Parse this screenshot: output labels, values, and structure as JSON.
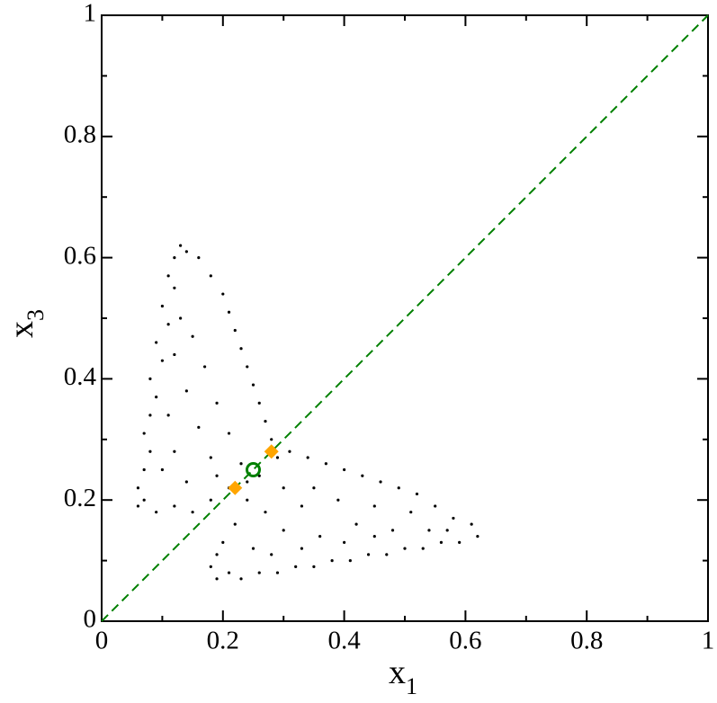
{
  "chart_data": {
    "type": "scatter",
    "xlabel": "x",
    "xlabel_sub": "1",
    "ylabel": "x",
    "ylabel_sub": "3",
    "xlim": [
      0,
      1
    ],
    "ylim": [
      0,
      1
    ],
    "xticks": [
      0,
      0.2,
      0.4,
      0.6,
      0.8,
      1
    ],
    "yticks": [
      0,
      0.2,
      0.4,
      0.6,
      0.8,
      1
    ],
    "xminor": [
      0.1,
      0.3,
      0.5,
      0.7,
      0.9
    ],
    "yminor": [
      0.1,
      0.3,
      0.5,
      0.7,
      0.9
    ],
    "grid": false,
    "reference_line": {
      "x": [
        0,
        1
      ],
      "y": [
        0,
        1
      ],
      "color": "#008000",
      "dashed": true
    },
    "series": [
      {
        "color": "#000000",
        "marker": "dot",
        "x": [
          0.13,
          0.12,
          0.14,
          0.11,
          0.12,
          0.1,
          0.11,
          0.09,
          0.1,
          0.08,
          0.09,
          0.08,
          0.07,
          0.08,
          0.07,
          0.06,
          0.07,
          0.06,
          0.09,
          0.12,
          0.15,
          0.18,
          0.21,
          0.16,
          0.18,
          0.2,
          0.21,
          0.22,
          0.23,
          0.24,
          0.25,
          0.26,
          0.27,
          0.28,
          0.13,
          0.15,
          0.12,
          0.17,
          0.14,
          0.19,
          0.11,
          0.16,
          0.21,
          0.12,
          0.18,
          0.23,
          0.1,
          0.14,
          0.19,
          0.24,
          0.18,
          0.19,
          0.21,
          0.23,
          0.26,
          0.29,
          0.32,
          0.35,
          0.38,
          0.41,
          0.44,
          0.47,
          0.5,
          0.53,
          0.56,
          0.59,
          0.62,
          0.61,
          0.58,
          0.55,
          0.52,
          0.49,
          0.46,
          0.43,
          0.4,
          0.37,
          0.34,
          0.31,
          0.29,
          0.26,
          0.24,
          0.22,
          0.2,
          0.19,
          0.27,
          0.3,
          0.33,
          0.36,
          0.39,
          0.42,
          0.45,
          0.48,
          0.51,
          0.54,
          0.57,
          0.25,
          0.3,
          0.35,
          0.4,
          0.28,
          0.33,
          0.45
        ],
        "values": [
          0.62,
          0.6,
          0.61,
          0.57,
          0.55,
          0.52,
          0.49,
          0.46,
          0.43,
          0.4,
          0.37,
          0.34,
          0.31,
          0.28,
          0.25,
          0.22,
          0.2,
          0.19,
          0.18,
          0.19,
          0.18,
          0.2,
          0.22,
          0.6,
          0.57,
          0.54,
          0.51,
          0.48,
          0.45,
          0.42,
          0.39,
          0.36,
          0.33,
          0.3,
          0.5,
          0.47,
          0.44,
          0.42,
          0.38,
          0.36,
          0.34,
          0.32,
          0.31,
          0.28,
          0.27,
          0.26,
          0.25,
          0.23,
          0.24,
          0.23,
          0.09,
          0.07,
          0.08,
          0.07,
          0.08,
          0.08,
          0.09,
          0.09,
          0.1,
          0.1,
          0.11,
          0.11,
          0.12,
          0.12,
          0.13,
          0.13,
          0.14,
          0.16,
          0.17,
          0.19,
          0.21,
          0.22,
          0.23,
          0.24,
          0.25,
          0.26,
          0.27,
          0.28,
          0.27,
          0.24,
          0.2,
          0.16,
          0.13,
          0.11,
          0.18,
          0.15,
          0.19,
          0.14,
          0.2,
          0.16,
          0.19,
          0.15,
          0.18,
          0.15,
          0.15,
          0.12,
          0.22,
          0.22,
          0.13,
          0.11,
          0.12,
          0.14
        ]
      },
      {
        "color": "#ffa500",
        "marker": "diamond",
        "x": [
          0.22,
          0.28
        ],
        "values": [
          0.22,
          0.28
        ]
      },
      {
        "color": "#008000",
        "marker": "circle-open",
        "x": [
          0.25
        ],
        "values": [
          0.25
        ]
      }
    ]
  }
}
